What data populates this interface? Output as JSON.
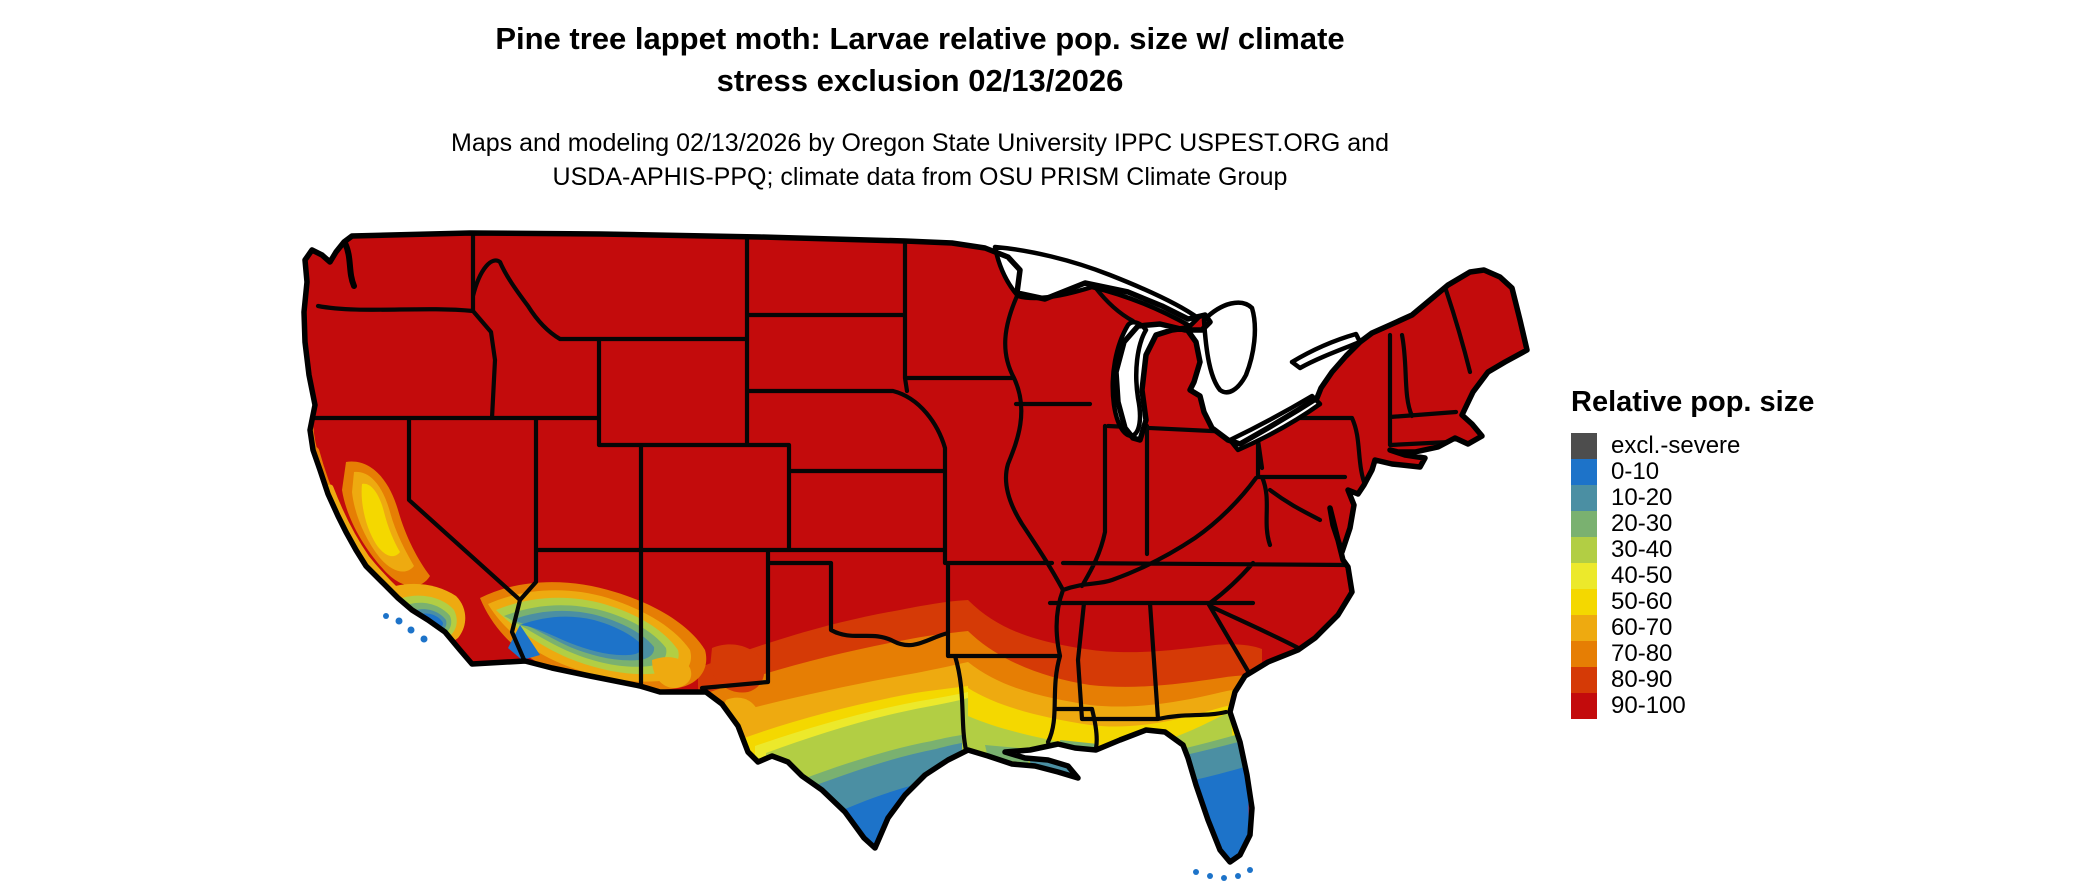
{
  "header": {
    "title_line1": "Pine tree lappet moth: Larvae relative pop. size w/ climate",
    "title_line2": "stress exclusion 02/13/2026",
    "subtitle_line1": "Maps and modeling 02/13/2026 by Oregon State University IPPC USPEST.ORG and",
    "subtitle_line2": "USDA-APHIS-PPQ; climate data from OSU PRISM Climate Group"
  },
  "legend": {
    "title": "Relative pop. size",
    "items": [
      {
        "label": "excl.-severe",
        "color": "#4d4d4d"
      },
      {
        "label": "0-10",
        "color": "#1d73c9"
      },
      {
        "label": "10-20",
        "color": "#4b8fa3"
      },
      {
        "label": "20-30",
        "color": "#7ab170"
      },
      {
        "label": "30-40",
        "color": "#b2ce44"
      },
      {
        "label": "40-50",
        "color": "#ece92b"
      },
      {
        "label": "50-60",
        "color": "#f4d800"
      },
      {
        "label": "60-70",
        "color": "#eeaa10"
      },
      {
        "label": "70-80",
        "color": "#e67e04"
      },
      {
        "label": "80-90",
        "color": "#d53a06"
      },
      {
        "label": "90-100",
        "color": "#c30b0c"
      }
    ]
  },
  "map": {
    "type": "choropleth-raster",
    "region": "Continental United States",
    "variable": "Larvae relative population size (%)",
    "dominant_class": "90-100",
    "low_value_areas": "south Texas, peninsular Florida, Gulf Coast, southern California, southwest Arizona",
    "state_border_color": "#000000",
    "water_color": "#ffffff"
  }
}
